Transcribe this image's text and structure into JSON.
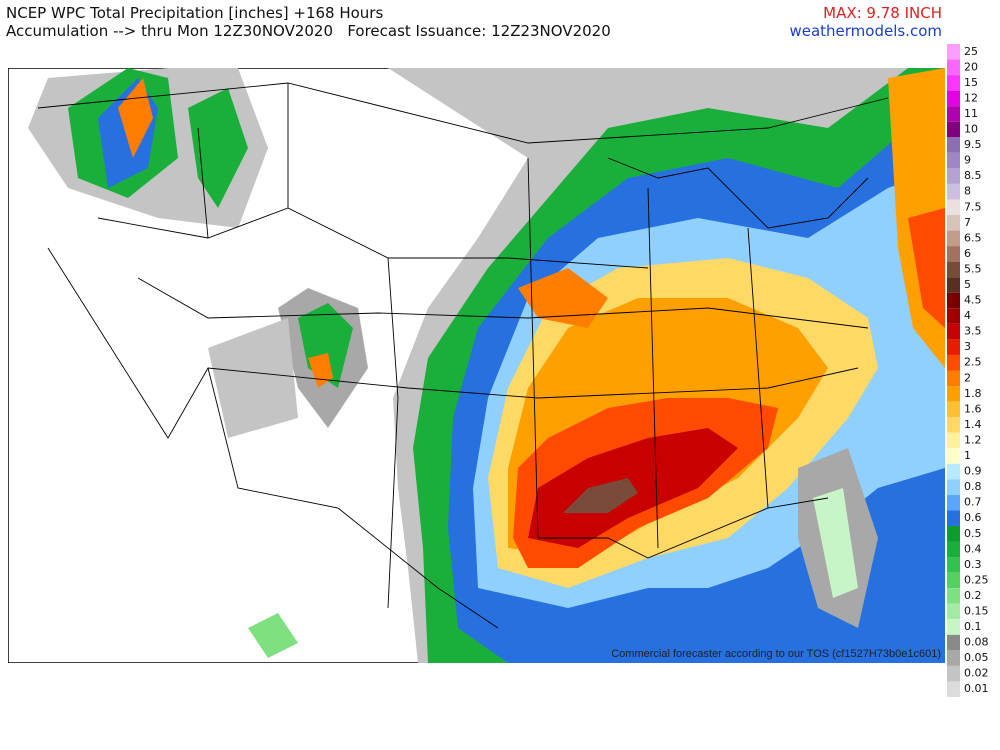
{
  "header": {
    "title": "NCEP WPC Total Precipitation [inches] +168 Hours",
    "subtitle": "Accumulation --> thru Mon 12Z30NOV2020   Forecast Issuance: 12Z23NOV2020",
    "max": "MAX: 9.78 INCH",
    "site": "weathermodels.com"
  },
  "map": {
    "watermark": "Commercial forecaster according to our TOS (cf1527H73b0e1c601)"
  },
  "legend": {
    "items": [
      {
        "label": "25",
        "color": "#ff9cff"
      },
      {
        "label": "20",
        "color": "#ff66ff"
      },
      {
        "label": "15",
        "color": "#ff33ff"
      },
      {
        "label": "12",
        "color": "#e600e6"
      },
      {
        "label": "11",
        "color": "#b000b0"
      },
      {
        "label": "10",
        "color": "#800080"
      },
      {
        "label": "9.5",
        "color": "#8a6fb5"
      },
      {
        "label": "9",
        "color": "#9d87c4"
      },
      {
        "label": "8.5",
        "color": "#b3a3d3"
      },
      {
        "label": "8",
        "color": "#cbc0e2"
      },
      {
        "label": "7.5",
        "color": "#ebe0de"
      },
      {
        "label": "7",
        "color": "#dbc2b8"
      },
      {
        "label": "6.5",
        "color": "#c49a8c"
      },
      {
        "label": "6",
        "color": "#a47060"
      },
      {
        "label": "5.5",
        "color": "#7a4a3a"
      },
      {
        "label": "5",
        "color": "#5a2e22"
      },
      {
        "label": "4.5",
        "color": "#780000"
      },
      {
        "label": "4",
        "color": "#a00000"
      },
      {
        "label": "3.5",
        "color": "#c80000"
      },
      {
        "label": "3",
        "color": "#e81c00"
      },
      {
        "label": "2.5",
        "color": "#ff4a00"
      },
      {
        "label": "2",
        "color": "#ff7e00"
      },
      {
        "label": "1.8",
        "color": "#ffa000"
      },
      {
        "label": "1.6",
        "color": "#ffbf33"
      },
      {
        "label": "1.4",
        "color": "#ffd966"
      },
      {
        "label": "1.2",
        "color": "#fff099"
      },
      {
        "label": "1",
        "color": "#ffffcc"
      },
      {
        "label": "0.9",
        "color": "#b7e9ff"
      },
      {
        "label": "0.8",
        "color": "#8fd0ff"
      },
      {
        "label": "0.7",
        "color": "#5aa6ff"
      },
      {
        "label": "0.6",
        "color": "#2670e0"
      },
      {
        "label": "0.5",
        "color": "#0d9c2e"
      },
      {
        "label": "0.4",
        "color": "#1aaf3a"
      },
      {
        "label": "0.3",
        "color": "#33c24d"
      },
      {
        "label": "0.25",
        "color": "#55d15f"
      },
      {
        "label": "0.2",
        "color": "#7fe07f"
      },
      {
        "label": "0.15",
        "color": "#a3eba3"
      },
      {
        "label": "0.1",
        "color": "#c8f5c8"
      },
      {
        "label": "0.08",
        "color": "#8a8a8a"
      },
      {
        "label": "0.05",
        "color": "#a8a8a8"
      },
      {
        "label": "0.02",
        "color": "#c4c4c4"
      },
      {
        "label": "0.01",
        "color": "#dcdcdc"
      }
    ]
  }
}
